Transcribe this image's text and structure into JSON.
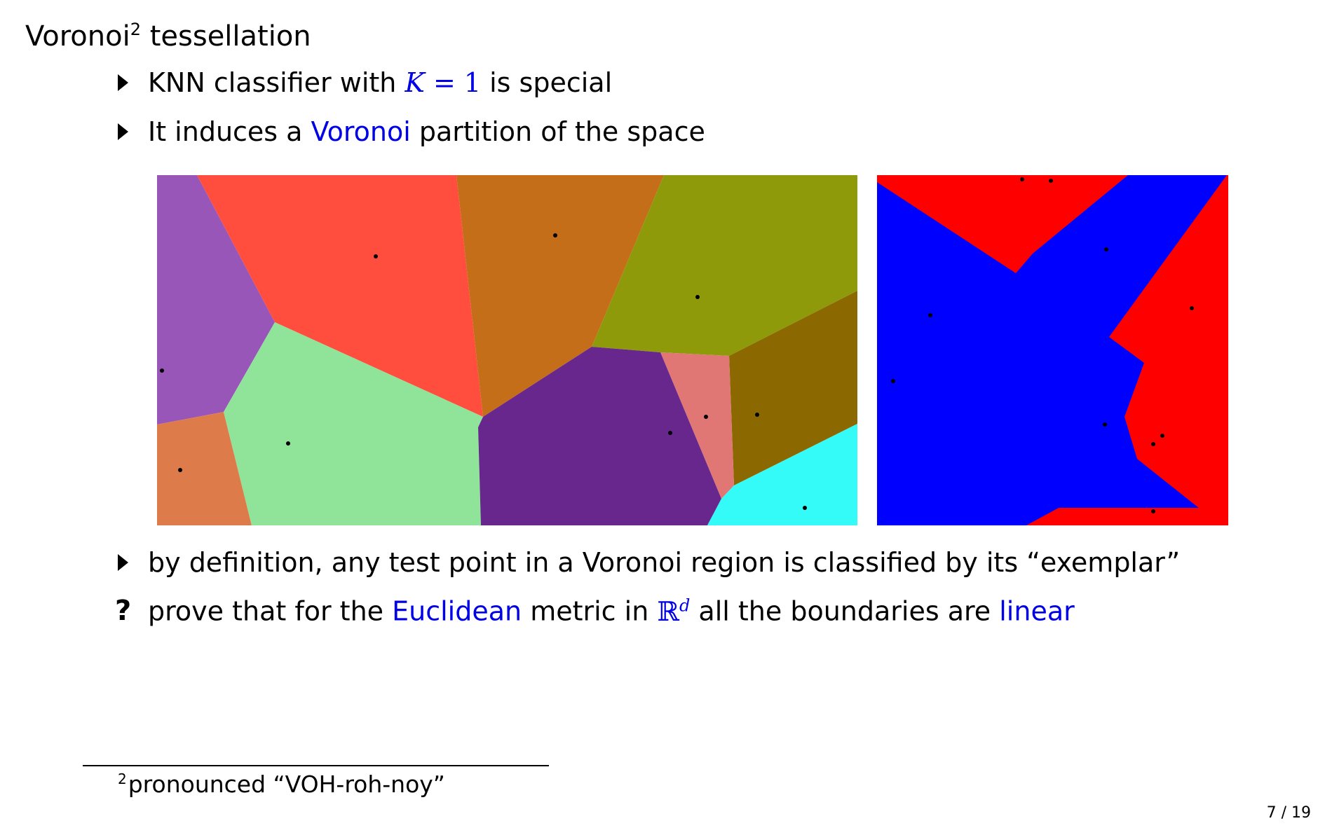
{
  "slide": {
    "title": "Voronoi",
    "title_footnote_mark": "2",
    "title_rest": " tessellation",
    "bullets": [
      {
        "before": "KNN classifier with ",
        "highlight": "K = 1",
        "after": " is special"
      },
      {
        "before": "It induces a ",
        "highlight": "Voronoi",
        "after": " partition of the space"
      },
      {
        "text": "by definition, any test point in a Voronoi region is classified by its “exemplar”"
      },
      {
        "before": "prove that for the ",
        "highlight": "Euclidean",
        "middle": " metric in ",
        "math": "ℝ",
        "math_sup": "d",
        "middle2": " all the boundaries are ",
        "highlight2": "linear"
      }
    ],
    "question_mark": "?",
    "footnote": {
      "mark": "2",
      "text": "pronounced “VOH-roh-noy”"
    },
    "page_number": "7 / 19"
  },
  "colors": {
    "highlight": "#0000e6",
    "voronoi_regions": [
      "#9856b9",
      "#ff4e3e",
      "#c46e1a",
      "#8e9a0a",
      "#8c6900",
      "#dd7b4a",
      "#90e49a",
      "#67278c",
      "#e07774",
      "#35fbf8"
    ],
    "class_blue": "#0000ff",
    "class_red": "#ff0000"
  }
}
